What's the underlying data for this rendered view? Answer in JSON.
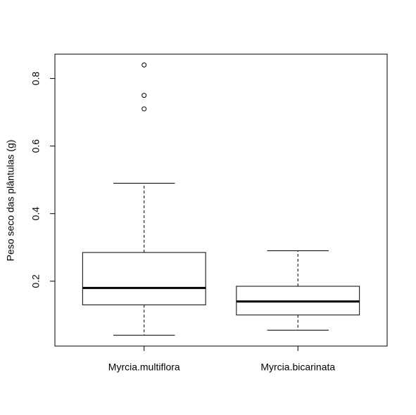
{
  "chart_data": {
    "type": "box",
    "y_label": "Peso seco das plântulas (g)",
    "categories": [
      "Myrcia.multiflora",
      "Myrcia.bicarinata"
    ],
    "boxes": [
      {
        "min": 0.04,
        "q1": 0.13,
        "median": 0.18,
        "q3": 0.285,
        "max": 0.49,
        "outliers": [
          0.84,
          0.75,
          0.71
        ]
      },
      {
        "min": 0.055,
        "q1": 0.1,
        "median": 0.14,
        "q3": 0.185,
        "max": 0.29,
        "outliers": []
      }
    ],
    "color": "#000000",
    "ylim": [
      0.008,
      0.872
    ],
    "yticks": [
      0.2,
      0.4,
      0.6,
      0.8
    ]
  }
}
